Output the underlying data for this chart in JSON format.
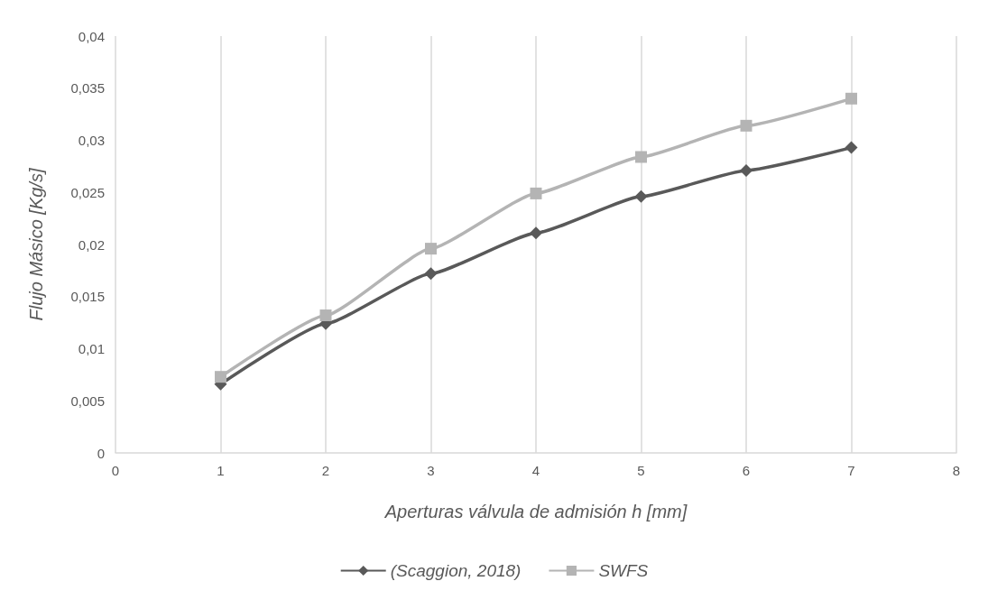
{
  "chart_data": {
    "type": "line",
    "xlabel": "Aperturas válvula de admisión h [mm]",
    "ylabel": "Flujo Másico [Kg/s]",
    "x": [
      1,
      2,
      3,
      4,
      5,
      6,
      7
    ],
    "series": [
      {
        "name": "(Scaggion, 2018)",
        "color": "#595959",
        "marker": "diamond",
        "values": [
          0.0066,
          0.0124,
          0.0172,
          0.0211,
          0.0246,
          0.0271,
          0.0293
        ]
      },
      {
        "name": "SWFS",
        "color": "#b4b4b4",
        "marker": "square",
        "values": [
          0.0073,
          0.0132,
          0.0196,
          0.0249,
          0.0284,
          0.0314,
          0.034
        ]
      }
    ],
    "xlim": [
      0,
      8
    ],
    "xticks": [
      0,
      1,
      2,
      3,
      4,
      5,
      6,
      7,
      8
    ],
    "ylim": [
      0,
      0.04
    ],
    "yticks": [
      0,
      {
        "value": 0.005,
        "label": "0,005"
      },
      {
        "value": 0.01,
        "label": "0,01"
      },
      {
        "value": 0.015,
        "label": "0,015"
      },
      {
        "value": 0.02,
        "label": "0,02"
      },
      {
        "value": 0.025,
        "label": "0,025"
      },
      {
        "value": 0.03,
        "label": "0,03"
      },
      {
        "value": 0.035,
        "label": "0,035"
      },
      {
        "value": 0.04,
        "label": "0,04"
      }
    ],
    "grid": "x",
    "legend": "bottom",
    "line_style": "solid"
  }
}
